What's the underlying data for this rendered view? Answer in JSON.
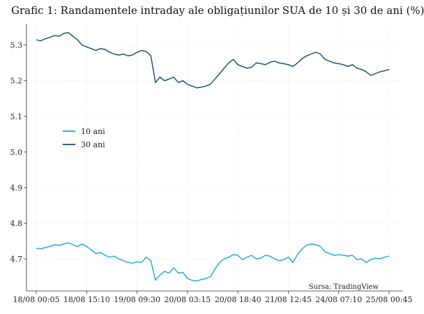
{
  "chart_data": {
    "type": "line",
    "title": "Grafic 1: Randamentele intraday ale obligațiunilor SUA de 10 și 30 de ani (%)",
    "xlabel": "",
    "ylabel": "",
    "ylim": [
      4.61,
      5.36
    ],
    "y_ticks": [
      4.7,
      4.8,
      4.9,
      5.0,
      5.1,
      5.2,
      5.3
    ],
    "y_tick_labels": [
      "4.7",
      "4.8",
      "4.9",
      "5.0",
      "5.1",
      "5.2",
      "5.3"
    ],
    "x_tick_labels": [
      "18/08 00:05",
      "18/08 15:10",
      "19/08 09:30",
      "20/08 03:15",
      "20/08 18:40",
      "21/08 12:45",
      "24/08 07:10",
      "25/08 00:45"
    ],
    "grid": true,
    "legend": "left-middle",
    "source": "Sursa: TradingView",
    "series": [
      {
        "name": "10 ani",
        "color": "#1aa6d4",
        "values": [
          4.73,
          4.728,
          4.732,
          4.735,
          4.74,
          4.738,
          4.742,
          4.745,
          4.74,
          4.735,
          4.742,
          4.735,
          4.725,
          4.715,
          4.718,
          4.71,
          4.705,
          4.708,
          4.7,
          4.695,
          4.69,
          4.688,
          4.692,
          4.69,
          4.705,
          4.695,
          4.64,
          4.655,
          4.665,
          4.66,
          4.675,
          4.66,
          4.662,
          4.645,
          4.64,
          4.638,
          4.642,
          4.645,
          4.65,
          4.672,
          4.69,
          4.7,
          4.705,
          4.712,
          4.71,
          4.698,
          4.705,
          4.71,
          4.7,
          4.702,
          4.71,
          4.708,
          4.7,
          4.695,
          4.698,
          4.705,
          4.69,
          4.712,
          4.728,
          4.738,
          4.742,
          4.74,
          4.735,
          4.72,
          4.715,
          4.71,
          4.712,
          4.71,
          4.708,
          4.71,
          4.698,
          4.7,
          4.69,
          4.698,
          4.702,
          4.7,
          4.705,
          4.708
        ]
      },
      {
        "name": "30 ani",
        "color": "#0f4c68",
        "values": [
          5.315,
          5.312,
          5.318,
          5.322,
          5.327,
          5.325,
          5.333,
          5.335,
          5.325,
          5.315,
          5.3,
          5.295,
          5.29,
          5.285,
          5.29,
          5.288,
          5.28,
          5.275,
          5.272,
          5.275,
          5.27,
          5.272,
          5.28,
          5.285,
          5.282,
          5.27,
          5.195,
          5.21,
          5.2,
          5.205,
          5.21,
          5.195,
          5.2,
          5.19,
          5.185,
          5.18,
          5.182,
          5.185,
          5.19,
          5.205,
          5.22,
          5.235,
          5.25,
          5.26,
          5.245,
          5.24,
          5.235,
          5.238,
          5.25,
          5.248,
          5.245,
          5.252,
          5.255,
          5.25,
          5.248,
          5.245,
          5.24,
          5.25,
          5.262,
          5.27,
          5.275,
          5.28,
          5.275,
          5.26,
          5.255,
          5.25,
          5.248,
          5.245,
          5.24,
          5.245,
          5.235,
          5.232,
          5.225,
          5.215,
          5.22,
          5.225,
          5.228,
          5.232
        ]
      }
    ]
  }
}
